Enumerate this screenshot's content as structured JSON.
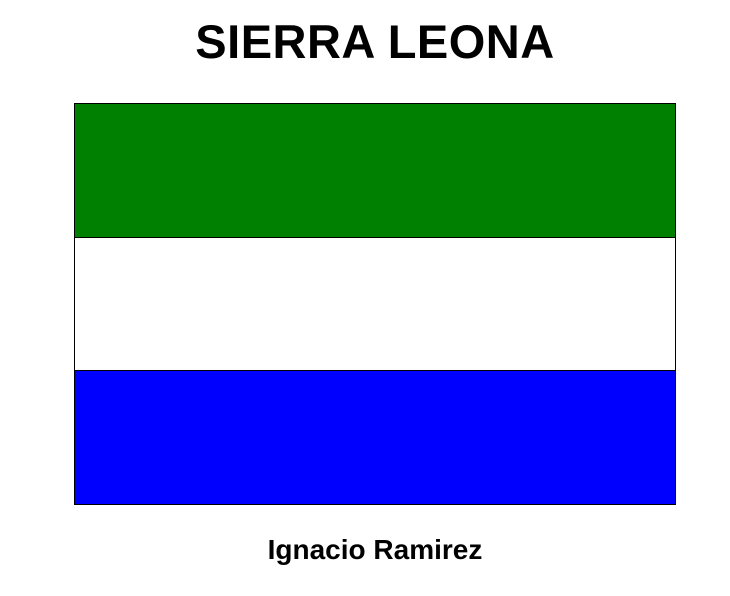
{
  "title": "SIERRA LEONA",
  "author": "Ignacio Ramirez",
  "flag": {
    "stripes": [
      {
        "position": "top",
        "color": "#008000"
      },
      {
        "position": "middle",
        "color": "#ffffff"
      },
      {
        "position": "bottom",
        "color": "#0000ff"
      }
    ]
  }
}
